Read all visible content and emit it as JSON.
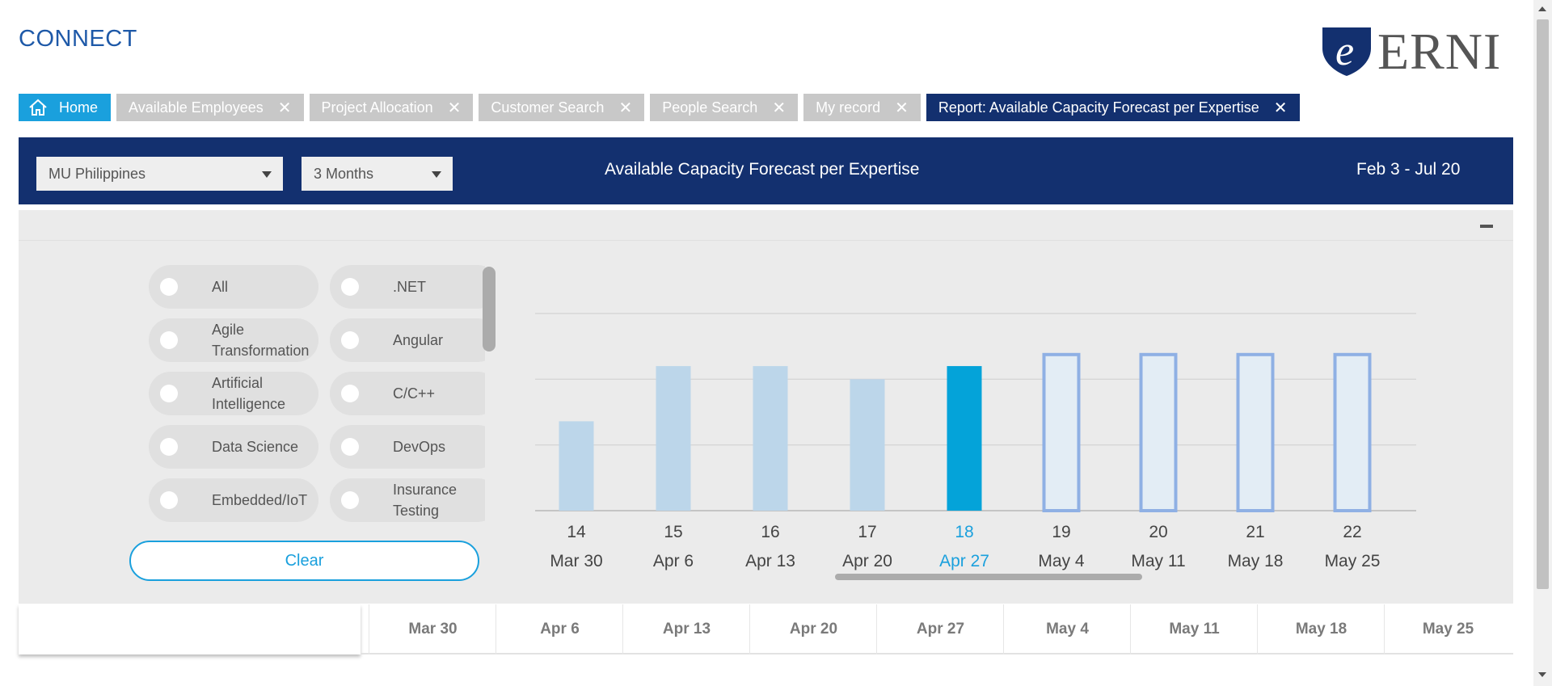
{
  "app": {
    "title": "CONNECT",
    "logo_text": "ERNI",
    "logo_mark": "e"
  },
  "tabs": [
    {
      "label": "Home",
      "icon": "home-icon",
      "active": false,
      "closable": false
    },
    {
      "label": "Available Employees",
      "closable": true
    },
    {
      "label": "Project Allocation",
      "closable": true
    },
    {
      "label": "Customer Search",
      "closable": true
    },
    {
      "label": "People Search",
      "closable": true
    },
    {
      "label": "My record",
      "closable": true
    },
    {
      "label": "Report: Available Capacity Forecast per Expertise",
      "closable": true,
      "active": true
    }
  ],
  "tab_close_glyph": "✕",
  "report": {
    "unit_select": "MU Philippines",
    "period_select": "3 Months",
    "title": "Available Capacity Forecast per Expertise",
    "date_range": "Feb 3 - Jul 20"
  },
  "filters": [
    {
      "label": "All"
    },
    {
      "label": ".NET"
    },
    {
      "label": "Agile Transformation"
    },
    {
      "label": "Angular"
    },
    {
      "label": "Artificial Intelligence"
    },
    {
      "label": "C/C++"
    },
    {
      "label": "Data Science"
    },
    {
      "label": "DevOps"
    },
    {
      "label": "Embedded/IoT"
    },
    {
      "label": "Insurance Testing"
    }
  ],
  "clear_label": "Clear",
  "chart_data": {
    "type": "bar",
    "categories": [
      "14",
      "15",
      "16",
      "17",
      "18",
      "19",
      "20",
      "21",
      "22"
    ],
    "week_dates": [
      "Mar 30",
      "Apr 6",
      "Apr 13",
      "Apr 20",
      "Apr 27",
      "May 4",
      "May 11",
      "May 18",
      "May 25"
    ],
    "values": [
      68,
      110,
      110,
      100,
      110,
      120,
      120,
      120,
      120
    ],
    "highlighted_index": 4,
    "forecast_start_index": 5,
    "ylim": [
      0,
      150
    ],
    "gridlines": [
      0,
      50,
      100,
      150
    ],
    "grid": true,
    "y_ticks_shown": false,
    "colors": {
      "past": "#bcd6ea",
      "current": "#04a3d9",
      "forecast_fill": "#e3edf5",
      "forecast_stroke": "#8fb0e4",
      "highlight_text": "#1aa0dd",
      "text": "#444444"
    }
  },
  "bottom_columns": [
    "Mar 30",
    "Apr 6",
    "Apr 13",
    "Apr 20",
    "Apr 27",
    "May 4",
    "May 11",
    "May 18",
    "May 25"
  ]
}
